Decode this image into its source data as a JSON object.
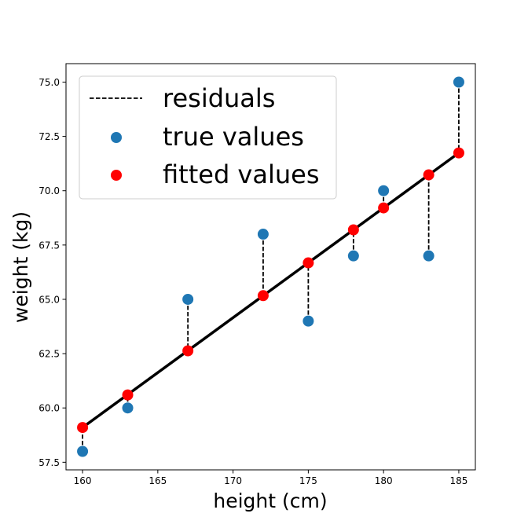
{
  "chart_data": {
    "type": "scatter",
    "title": "",
    "xlabel": "height (cm)",
    "ylabel": "weight (kg)",
    "xlim": [
      158.9,
      186.1
    ],
    "ylim": [
      57.15,
      75.85
    ],
    "xticks": [
      160,
      165,
      170,
      175,
      180,
      185
    ],
    "yticks": [
      57.5,
      60.0,
      62.5,
      65.0,
      67.5,
      70.0,
      72.5,
      75.0
    ],
    "grid": false,
    "legend": {
      "placement": "top-left",
      "entries": [
        "residuals",
        "true values",
        "fitted values"
      ]
    },
    "x": [
      160,
      163,
      167,
      172,
      175,
      178,
      180,
      183,
      185
    ],
    "series": [
      {
        "name": "true values",
        "kind": "scatter",
        "color": "#1f77b4",
        "values": [
          58,
          60,
          65,
          68,
          64,
          67,
          70,
          67,
          75
        ]
      },
      {
        "name": "fitted values",
        "kind": "scatter",
        "color": "#ff0000",
        "values": [
          59.1,
          60.6,
          62.63,
          65.17,
          66.68,
          68.2,
          69.21,
          70.73,
          71.74
        ]
      },
      {
        "name": "fit line",
        "kind": "line",
        "color": "#000000",
        "x": [
          160,
          185
        ],
        "values": [
          59.1,
          71.74
        ]
      }
    ],
    "residuals": {
      "name": "residuals",
      "style": "dashed",
      "color": "#000000"
    }
  }
}
